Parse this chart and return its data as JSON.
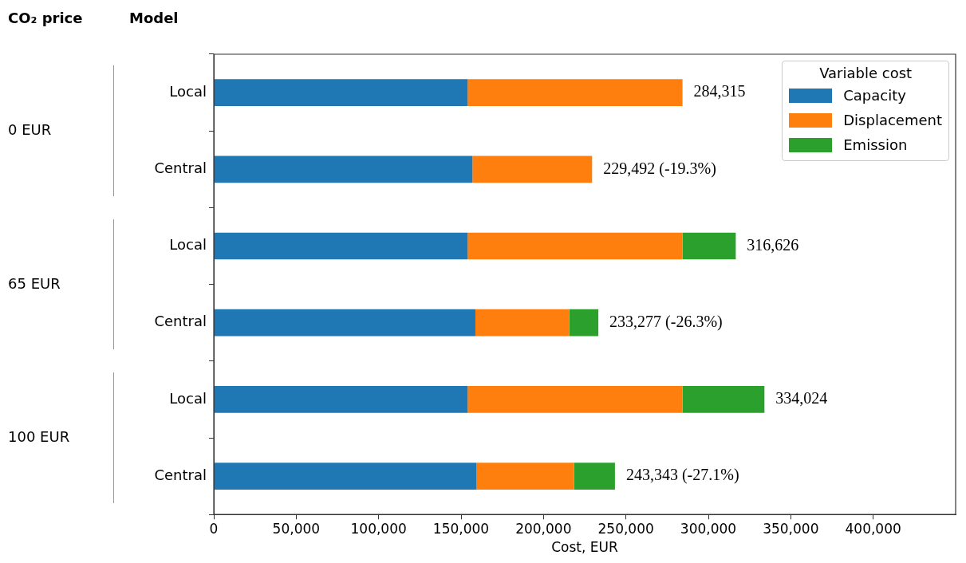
{
  "chart_data": {
    "type": "bar",
    "orientation": "horizontal",
    "stacked": true,
    "categories": [
      "Local",
      "Central",
      "Local",
      "Central",
      "Local",
      "Central"
    ],
    "series": [
      {
        "name": "Capacity",
        "color": "#1f77b4",
        "values": [
          154000,
          156900,
          154000,
          158700,
          154000,
          159200
        ]
      },
      {
        "name": "Displacement",
        "color": "#ff7f0e",
        "values": [
          130315,
          72592,
          130315,
          57000,
          130315,
          59300
        ]
      },
      {
        "name": "Emission",
        "color": "#2ca02c",
        "values": [
          null,
          null,
          32311,
          17577,
          49709,
          24843
        ]
      }
    ],
    "totals": [
      "284,315",
      "229,492 (-19.3%)",
      "316,626",
      "233,277 (-26.3%)",
      "334,024",
      "243,343 (-27.1%)"
    ],
    "xlabel": "Cost, EUR",
    "legend_title": "Variable cost",
    "legend": "top right",
    "grid": false,
    "xlim": [
      0,
      450000
    ],
    "xticks": [
      0,
      {
        "value": 50000,
        "label": "50,000"
      },
      {
        "value": 100000,
        "label": "100,000"
      },
      {
        "value": 150000,
        "label": "150,000"
      },
      {
        "value": 200000,
        "label": "200,000"
      },
      {
        "value": 250000,
        "label": "250,000"
      },
      {
        "value": 300000,
        "label": "300,000"
      },
      {
        "value": 350000,
        "label": "350,000"
      },
      {
        "value": 400000,
        "label": "400,000"
      }
    ],
    "annotations": [
      "CO₂ price",
      "Model",
      "0 EUR",
      "65 EUR",
      "100 EUR"
    ]
  }
}
